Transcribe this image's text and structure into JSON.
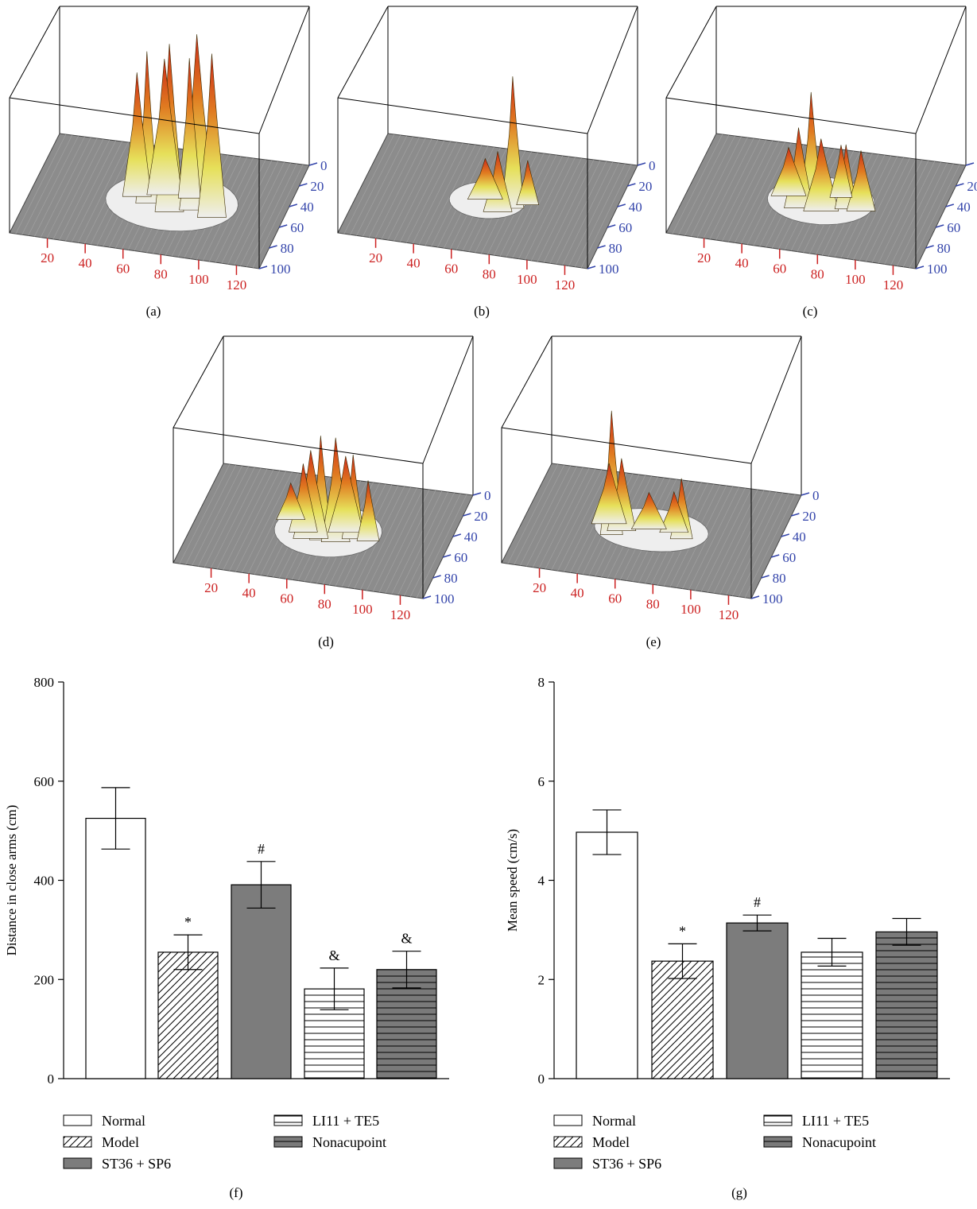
{
  "surface_plots": [
    {
      "label": "(a)",
      "x_ticks": [
        "20",
        "40",
        "60",
        "80",
        "100",
        "120"
      ],
      "y_ticks": [
        "0",
        "20",
        "40",
        "60",
        "80",
        "100"
      ]
    },
    {
      "label": "(b)",
      "x_ticks": [
        "20",
        "40",
        "60",
        "80",
        "100",
        "120"
      ],
      "y_ticks": [
        "0",
        "20",
        "40",
        "60",
        "80",
        "100"
      ]
    },
    {
      "label": "(c)",
      "x_ticks": [
        "20",
        "40",
        "60",
        "80",
        "100",
        "120"
      ],
      "y_ticks": [
        "0",
        "20",
        "40",
        "60",
        "80",
        "100"
      ]
    },
    {
      "label": "(d)",
      "x_ticks": [
        "20",
        "40",
        "60",
        "80",
        "100",
        "120"
      ],
      "y_ticks": [
        "0",
        "20",
        "40",
        "60",
        "80",
        "100"
      ]
    },
    {
      "label": "(e)",
      "x_ticks": [
        "20",
        "40",
        "60",
        "80",
        "100",
        "120"
      ],
      "y_ticks": [
        "0",
        "20",
        "40",
        "60",
        "80",
        "100"
      ]
    }
  ],
  "colors": {
    "floor": "#8c8c8c",
    "peak_red": "#cc2a1a",
    "mid_orange": "#e07a20",
    "low_yellow": "#e6e05a",
    "base_white": "#eeeeee",
    "x_tick_color": "#cc2222",
    "y_tick_color": "#3344aa"
  },
  "chart_data": [
    {
      "type": "bar",
      "label": "(f)",
      "ylabel": "Distance in close arms (cm)",
      "ylim": [
        0,
        800
      ],
      "yticks": [
        "0",
        "200",
        "400",
        "600",
        "800"
      ],
      "categories": [
        "Normal",
        "Model",
        "ST36 + SP6",
        "LI11 + TE5",
        "Nonacupoint"
      ],
      "values": [
        525,
        255,
        391,
        181,
        220
      ],
      "errors": [
        62,
        35,
        47,
        42,
        37
      ],
      "annotations": [
        "",
        "*",
        "#",
        "&",
        "&"
      ]
    },
    {
      "type": "bar",
      "label": "(g)",
      "ylabel": "Mean speed (cm/s)",
      "ylim": [
        0,
        8
      ],
      "yticks": [
        "0",
        "2",
        "4",
        "6",
        "8"
      ],
      "categories": [
        "Normal",
        "Model",
        "ST36 + SP6",
        "LI11 + TE5",
        "Nonacupoint"
      ],
      "values": [
        4.97,
        2.37,
        3.14,
        2.55,
        2.96
      ],
      "errors": [
        0.45,
        0.35,
        0.16,
        0.28,
        0.27
      ],
      "annotations": [
        "",
        "*",
        "#",
        "",
        ""
      ]
    }
  ],
  "legend": [
    {
      "name": "Normal",
      "pattern": "white"
    },
    {
      "name": "Model",
      "pattern": "diagonal"
    },
    {
      "name": "ST36 + SP6",
      "pattern": "gray"
    },
    {
      "name": "LI11 + TE5",
      "pattern": "hlines"
    },
    {
      "name": "Nonacupoint",
      "pattern": "darkhlines"
    }
  ]
}
